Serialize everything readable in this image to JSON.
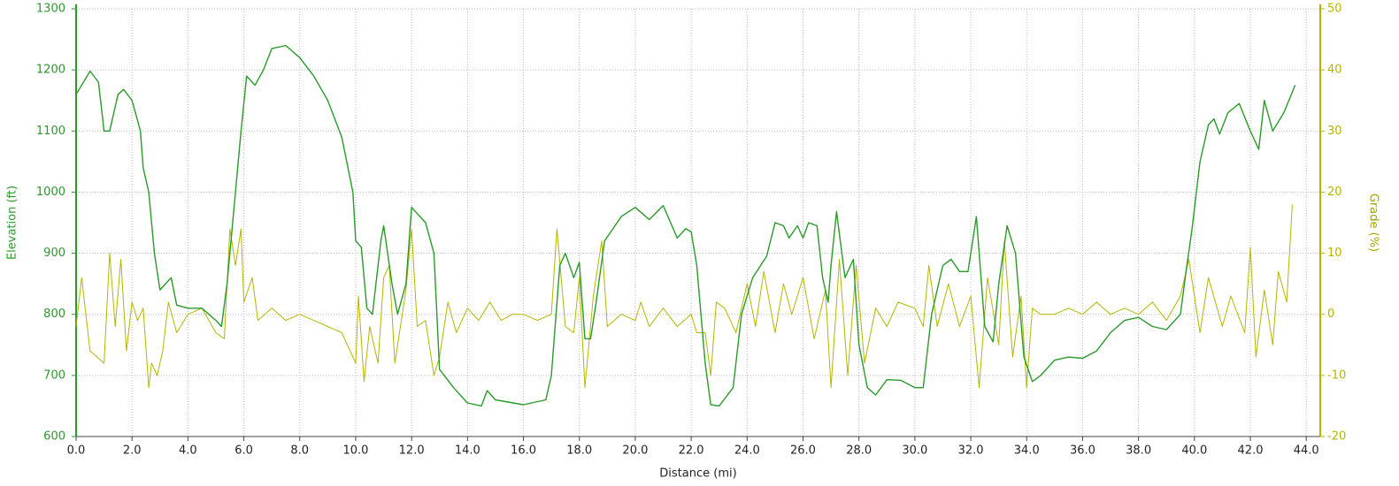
{
  "chart_data": {
    "type": "line",
    "x_label": "Distance (mi)",
    "y_label": "Elevation (ft)",
    "y2_label": "Grade (%)",
    "xlim": [
      0,
      44.5
    ],
    "xticks": [
      {
        "value": 0,
        "label": "0.0"
      },
      {
        "value": 2,
        "label": "2.0"
      },
      {
        "value": 4,
        "label": "4.0"
      },
      {
        "value": 6,
        "label": "6.0"
      },
      {
        "value": 8,
        "label": "8.0"
      },
      {
        "value": 10,
        "label": "10.0"
      },
      {
        "value": 12,
        "label": "12.0"
      },
      {
        "value": 14,
        "label": "14.0"
      },
      {
        "value": 16,
        "label": "16.0"
      },
      {
        "value": 18,
        "label": "18.0"
      },
      {
        "value": 20,
        "label": "20.0"
      },
      {
        "value": 22,
        "label": "22.0"
      },
      {
        "value": 24,
        "label": "24.0"
      },
      {
        "value": 26,
        "label": "26.0"
      },
      {
        "value": 28,
        "label": "28.0"
      },
      {
        "value": 30,
        "label": "30.0"
      },
      {
        "value": 32,
        "label": "32.0"
      },
      {
        "value": 34,
        "label": "34.0"
      },
      {
        "value": 36,
        "label": "36.0"
      },
      {
        "value": 38,
        "label": "38.0"
      },
      {
        "value": 40,
        "label": "40.0"
      },
      {
        "value": 42,
        "label": "42.0"
      },
      {
        "value": 44,
        "label": "44.0"
      }
    ],
    "ylim": [
      600,
      1300
    ],
    "yticks": [
      600,
      700,
      800,
      900,
      1000,
      1100,
      1200,
      1300
    ],
    "y2lim": [
      -20,
      50
    ],
    "y2ticks": [
      -20,
      -10,
      0,
      10,
      20,
      30,
      40,
      50
    ],
    "grid": true,
    "series": [
      {
        "name": "Elevation",
        "color": "#2a9a2a",
        "x": [
          0,
          0.5,
          0.8,
          1.0,
          1.2,
          1.5,
          1.7,
          2.0,
          2.3,
          2.4,
          2.6,
          2.7,
          2.8,
          3.0,
          3.2,
          3.4,
          3.6,
          4.0,
          4.5,
          5.0,
          5.2,
          5.4,
          5.7,
          5.9,
          6.1,
          6.4,
          6.7,
          7.0,
          7.5,
          8.0,
          8.5,
          9.0,
          9.5,
          9.9,
          10.0,
          10.2,
          10.4,
          10.6,
          10.9,
          11.0,
          11.3,
          11.5,
          11.8,
          12.0,
          12.5,
          12.8,
          13.0,
          13.5,
          14.0,
          14.5,
          14.7,
          15.0,
          16.0,
          16.8,
          17.0,
          17.3,
          17.5,
          17.8,
          18.0,
          18.2,
          18.4,
          18.6,
          18.9,
          19.5,
          20.0,
          20.5,
          21.0,
          21.5,
          21.8,
          22.0,
          22.2,
          22.5,
          22.7,
          23.0,
          23.5,
          23.8,
          24.2,
          24.7,
          25.0,
          25.3,
          25.5,
          25.8,
          26.0,
          26.2,
          26.5,
          26.7,
          26.9,
          27.0,
          27.2,
          27.5,
          27.8,
          28.0,
          28.3,
          28.6,
          29.0,
          29.5,
          30.0,
          30.3,
          30.6,
          31.0,
          31.3,
          31.6,
          31.9,
          32.2,
          32.5,
          32.8,
          33.0,
          33.3,
          33.6,
          33.9,
          34.2,
          34.5,
          35.0,
          35.5,
          36.0,
          36.5,
          37.0,
          37.5,
          38.0,
          38.5,
          39.0,
          39.5,
          39.7,
          39.9,
          40.2,
          40.5,
          40.7,
          40.9,
          41.2,
          41.6,
          42.0,
          42.3,
          42.5,
          42.8,
          43.2,
          43.6
        ],
        "values": [
          1160,
          1198,
          1180,
          1100,
          1100,
          1160,
          1168,
          1150,
          1100,
          1040,
          1000,
          950,
          900,
          840,
          850,
          860,
          815,
          810,
          810,
          790,
          780,
          850,
          1000,
          1100,
          1190,
          1175,
          1200,
          1235,
          1240,
          1220,
          1190,
          1150,
          1090,
          1000,
          920,
          910,
          810,
          800,
          920,
          945,
          850,
          800,
          850,
          975,
          950,
          900,
          710,
          680,
          655,
          650,
          675,
          660,
          652,
          660,
          700,
          880,
          900,
          860,
          885,
          760,
          760,
          820,
          920,
          960,
          975,
          955,
          978,
          925,
          940,
          935,
          880,
          720,
          652,
          650,
          680,
          800,
          860,
          895,
          950,
          945,
          925,
          945,
          925,
          950,
          945,
          860,
          820,
          880,
          968,
          860,
          890,
          750,
          680,
          668,
          693,
          692,
          680,
          680,
          800,
          880,
          890,
          870,
          870,
          960,
          780,
          755,
          850,
          945,
          900,
          730,
          690,
          700,
          725,
          730,
          728,
          740,
          770,
          790,
          795,
          780,
          775,
          800,
          870,
          935,
          1050,
          1110,
          1120,
          1095,
          1130,
          1145,
          1100,
          1070,
          1150,
          1100,
          1130,
          1175
        ]
      },
      {
        "name": "Grade",
        "color": "#b5b500",
        "axis": "y2",
        "x": [
          0,
          0.2,
          0.5,
          1.0,
          1.2,
          1.4,
          1.6,
          1.8,
          2.0,
          2.2,
          2.4,
          2.6,
          2.7,
          2.9,
          3.1,
          3.3,
          3.6,
          4.0,
          4.5,
          5.0,
          5.3,
          5.5,
          5.7,
          5.9,
          6.0,
          6.3,
          6.5,
          7.0,
          7.5,
          8.0,
          8.5,
          9.0,
          9.5,
          10.0,
          10.1,
          10.3,
          10.5,
          10.8,
          11.0,
          11.2,
          11.4,
          11.8,
          12.0,
          12.2,
          12.5,
          12.8,
          13.0,
          13.3,
          13.6,
          14.0,
          14.4,
          14.8,
          15.2,
          15.6,
          16.0,
          16.5,
          17.0,
          17.2,
          17.5,
          17.8,
          18.0,
          18.2,
          18.5,
          18.8,
          19.0,
          19.5,
          20.0,
          20.2,
          20.5,
          21.0,
          21.5,
          22.0,
          22.2,
          22.5,
          22.7,
          22.9,
          23.2,
          23.6,
          24.0,
          24.3,
          24.6,
          25.0,
          25.3,
          25.6,
          26.0,
          26.4,
          26.8,
          27.0,
          27.3,
          27.6,
          27.9,
          28.2,
          28.6,
          29.0,
          29.4,
          30.0,
          30.3,
          30.5,
          30.8,
          31.2,
          31.6,
          32.0,
          32.3,
          32.6,
          33.0,
          33.2,
          33.5,
          33.8,
          34.0,
          34.2,
          34.5,
          35.0,
          35.5,
          36.0,
          36.5,
          37.0,
          37.5,
          38.0,
          38.5,
          39.0,
          39.5,
          39.8,
          40.2,
          40.5,
          41.0,
          41.3,
          41.8,
          42.0,
          42.2,
          42.5,
          42.8,
          43.0,
          43.3,
          43.5
        ],
        "values": [
          -2,
          6,
          -6,
          -8,
          10,
          -2,
          9,
          -6,
          2,
          -1,
          1,
          -12,
          -8,
          -10,
          -6,
          2,
          -3,
          0,
          1,
          -3,
          -4,
          14,
          8,
          14,
          2,
          6,
          -1,
          1,
          -1,
          0,
          -1,
          -2,
          -3,
          -8,
          3,
          -11,
          -2,
          -8,
          6,
          8,
          -8,
          4,
          14,
          -2,
          -1,
          -10,
          -7,
          2,
          -3,
          1,
          -1,
          2,
          -1,
          0,
          0,
          -1,
          0,
          14,
          -2,
          -3,
          6,
          -12,
          3,
          12,
          -2,
          0,
          -1,
          2,
          -2,
          1,
          -2,
          0,
          -3,
          -3,
          -10,
          2,
          1,
          -3,
          5,
          -2,
          7,
          -3,
          5,
          0,
          6,
          -4,
          4,
          -12,
          9,
          -10,
          8,
          -8,
          1,
          -2,
          2,
          1,
          -2,
          8,
          -2,
          5,
          -2,
          3,
          -12,
          6,
          -5,
          12,
          -7,
          3,
          -12,
          1,
          0,
          0,
          1,
          0,
          2,
          0,
          1,
          0,
          2,
          -1,
          3,
          9,
          -3,
          6,
          -2,
          3,
          -3,
          11,
          -7,
          4,
          -5,
          7,
          2,
          18
        ]
      }
    ]
  }
}
